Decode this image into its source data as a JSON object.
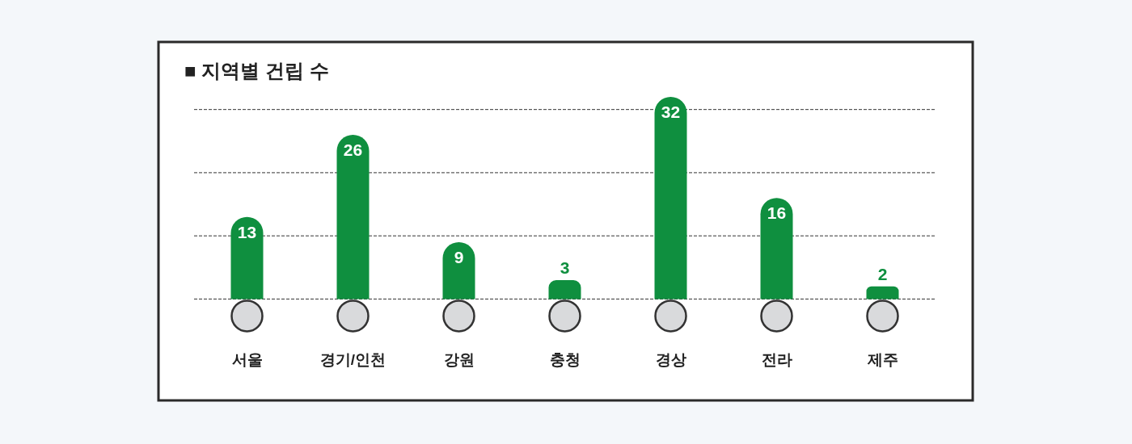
{
  "chart_data": {
    "type": "bar",
    "title": "■ 지역별 건립 수",
    "categories": [
      "서울",
      "경기/인천",
      "강원",
      "충청",
      "경상",
      "전라",
      "제주"
    ],
    "values": [
      13,
      26,
      9,
      3,
      32,
      16,
      2
    ],
    "color": "#0f8f3f",
    "data_labels": true,
    "yticks": [
      {
        "value": 0,
        "label": null
      },
      {
        "value": 10,
        "label": null
      },
      {
        "value": 20,
        "label": null
      },
      {
        "value": 30,
        "label": null
      }
    ],
    "grid": "y"
  }
}
